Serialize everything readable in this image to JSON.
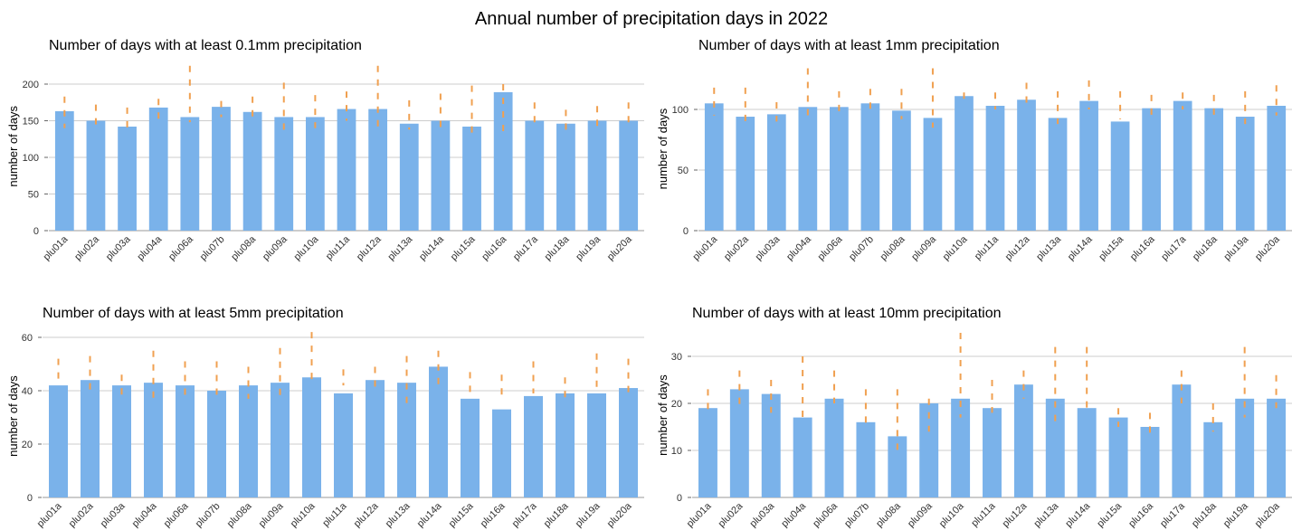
{
  "title": "Annual number of precipitation days in 2022",
  "colors": {
    "bar": "#7ab2ea",
    "whisker": "#f0a050",
    "grid": "#cccccc",
    "axis": "#999999"
  },
  "chart_data": [
    {
      "type": "bar",
      "title": "Number of days with at least 0.1mm precipitation",
      "ylabel": "number of days",
      "ylim": [
        0,
        230
      ],
      "yticks": [
        0,
        50,
        100,
        150,
        200
      ],
      "grid": true,
      "categories": [
        "plu01a",
        "plu02a",
        "plu03a",
        "plu04a",
        "plu06a",
        "plu07b",
        "plu08a",
        "plu09a",
        "plu10a",
        "plu11a",
        "plu12a",
        "plu13a",
        "plu14a",
        "plu15a",
        "plu16a",
        "plu17a",
        "plu18a",
        "plu19a",
        "plu20a"
      ],
      "values": [
        163,
        150,
        142,
        168,
        155,
        169,
        162,
        155,
        155,
        166,
        166,
        146,
        150,
        142,
        189,
        150,
        146,
        150,
        150
      ],
      "range_markers": [
        [
          140,
          183
        ],
        [
          138,
          172
        ],
        [
          140,
          168
        ],
        [
          145,
          180
        ],
        [
          148,
          225
        ],
        [
          155,
          177
        ],
        [
          150,
          183
        ],
        [
          133,
          202
        ],
        [
          140,
          185
        ],
        [
          150,
          190
        ],
        [
          138,
          225
        ],
        [
          138,
          178
        ],
        [
          140,
          187
        ],
        [
          128,
          198
        ],
        [
          130,
          200
        ],
        [
          138,
          175
        ],
        [
          132,
          165
        ],
        [
          138,
          170
        ],
        [
          138,
          175
        ]
      ]
    },
    {
      "type": "bar",
      "title": "Number of days with at least 1mm precipitation",
      "ylabel": "number of days",
      "ylim": [
        0,
        135
      ],
      "yticks": [
        0,
        50,
        100
      ],
      "grid": true,
      "categories": [
        "plu01a",
        "plu02a",
        "plu03a",
        "plu04a",
        "plu06a",
        "plu07b",
        "plu08a",
        "plu09a",
        "plu10a",
        "plu11a",
        "plu12a",
        "plu13a",
        "plu14a",
        "plu15a",
        "plu16a",
        "plu17a",
        "plu18a",
        "plu19a",
        "plu20a"
      ],
      "values": [
        105,
        94,
        96,
        102,
        102,
        105,
        99,
        93,
        111,
        103,
        108,
        93,
        107,
        90,
        101,
        107,
        101,
        94,
        103
      ],
      "range_markers": [
        [
          95,
          118
        ],
        [
          88,
          118
        ],
        [
          90,
          106
        ],
        [
          92,
          134
        ],
        [
          93,
          115
        ],
        [
          97,
          117
        ],
        [
          92,
          117
        ],
        [
          85,
          134
        ],
        [
          103,
          114
        ],
        [
          100,
          114
        ],
        [
          102,
          122
        ],
        [
          88,
          115
        ],
        [
          100,
          124
        ],
        [
          92,
          115
        ],
        [
          95,
          112
        ],
        [
          100,
          114
        ],
        [
          93,
          112
        ],
        [
          88,
          115
        ],
        [
          95,
          120
        ]
      ]
    },
    {
      "type": "bar",
      "title": "Number of days with at least 5mm precipitation",
      "ylabel": "number of days",
      "ylim": [
        0,
        61
      ],
      "yticks": [
        0,
        20,
        40,
        60
      ],
      "grid": true,
      "categories": [
        "plu01a",
        "plu02a",
        "plu03a",
        "plu04a",
        "plu06a",
        "plu07b",
        "plu08a",
        "plu09a",
        "plu10a",
        "plu11a",
        "plu12a",
        "plu13a",
        "plu14a",
        "plu15a",
        "plu16a",
        "plu17a",
        "plu18a",
        "plu19a",
        "plu20a"
      ],
      "values": [
        42,
        44,
        42,
        43,
        42,
        40,
        42,
        43,
        45,
        39,
        44,
        43,
        49,
        37,
        33,
        38,
        39,
        39,
        41
      ],
      "range_markers": [
        [
          44,
          52
        ],
        [
          39,
          53
        ],
        [
          36,
          46
        ],
        [
          35,
          55
        ],
        [
          36,
          51
        ],
        [
          37,
          51
        ],
        [
          37,
          49
        ],
        [
          38,
          56
        ],
        [
          44,
          62
        ],
        [
          42,
          48
        ],
        [
          39,
          49
        ],
        [
          34,
          53
        ],
        [
          41,
          55
        ],
        [
          37,
          47
        ],
        [
          38,
          46
        ],
        [
          39,
          51
        ],
        [
          35,
          45
        ],
        [
          40,
          54
        ],
        [
          39,
          52
        ]
      ]
    },
    {
      "type": "bar",
      "title": "Number of days with at least 10mm precipitation",
      "ylabel": "number of days",
      "ylim": [
        0,
        35
      ],
      "yticks": [
        0,
        10,
        20,
        30
      ],
      "grid": true,
      "categories": [
        "plu01a",
        "plu02a",
        "plu03a",
        "plu04a",
        "plu06a",
        "plu07b",
        "plu08a",
        "plu09a",
        "plu10a",
        "plu11a",
        "plu12a",
        "plu13a",
        "plu14a",
        "plu15a",
        "plu16a",
        "plu17a",
        "plu18a",
        "plu19a",
        "plu20a"
      ],
      "values": [
        19,
        23,
        22,
        17,
        21,
        16,
        13,
        20,
        21,
        19,
        24,
        21,
        19,
        17,
        15,
        24,
        16,
        21,
        21
      ],
      "range_markers": [
        [
          18,
          23
        ],
        [
          19,
          27
        ],
        [
          18,
          25
        ],
        [
          16,
          30
        ],
        [
          20,
          27
        ],
        [
          15,
          23
        ],
        [
          9,
          23
        ],
        [
          14,
          21
        ],
        [
          17,
          35
        ],
        [
          18,
          25
        ],
        [
          21,
          27
        ],
        [
          16,
          32
        ],
        [
          18,
          32
        ],
        [
          15,
          19
        ],
        [
          13,
          18
        ],
        [
          20,
          27
        ],
        [
          14,
          20
        ],
        [
          17,
          32
        ],
        [
          19,
          26
        ]
      ]
    }
  ]
}
